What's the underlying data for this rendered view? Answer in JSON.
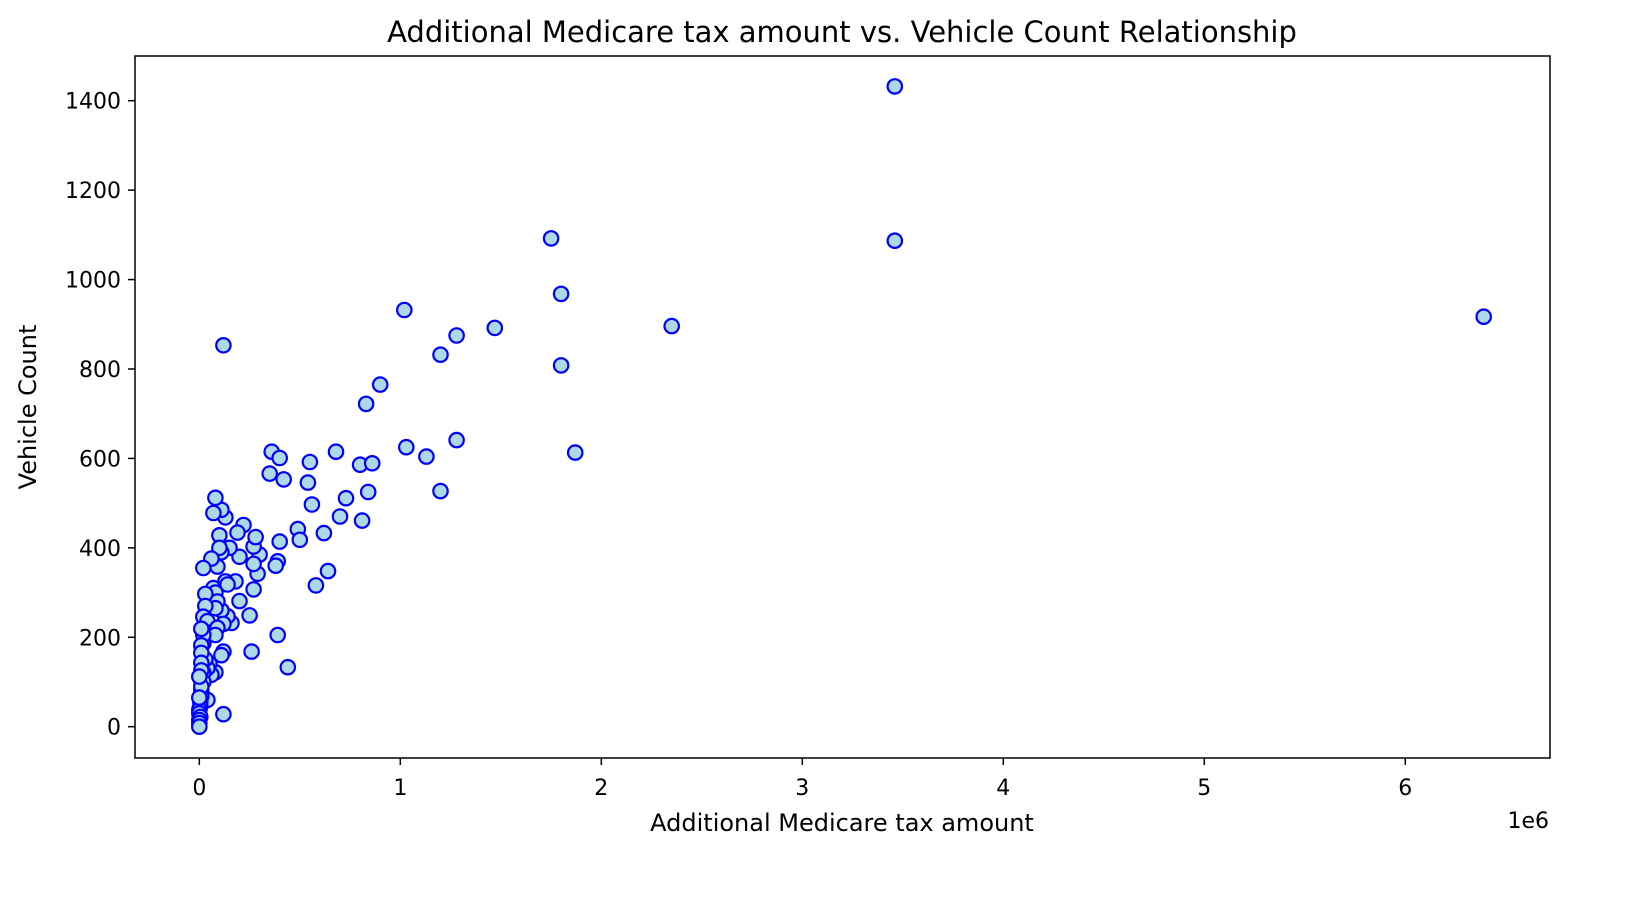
{
  "chart_data": {
    "type": "scatter",
    "title": "Additional Medicare tax amount vs. Vehicle Count Relationship",
    "xlabel": "Additional Medicare tax amount",
    "ylabel": "Vehicle Count",
    "x_offset_text": "1e6",
    "x_scale": 1000000,
    "xlim": [
      -320000,
      6720000
    ],
    "ylim": [
      -70,
      1500
    ],
    "xticks": [
      0,
      1000000,
      2000000,
      3000000,
      4000000,
      5000000,
      6000000
    ],
    "xtick_labels": [
      "0",
      "1",
      "2",
      "3",
      "4",
      "5",
      "6"
    ],
    "yticks": [
      0,
      200,
      400,
      600,
      800,
      1000,
      1200,
      1400
    ],
    "ytick_labels": [
      "0",
      "200",
      "400",
      "600",
      "800",
      "1000",
      "1200",
      "1400"
    ],
    "grid": false,
    "marker": {
      "face_color": "#add8e6",
      "edge_color": "#0000ff"
    },
    "points": [
      [
        3460000,
        1432
      ],
      [
        1750000,
        1092
      ],
      [
        3460000,
        1087
      ],
      [
        6390000,
        917
      ],
      [
        1800000,
        968
      ],
      [
        2350000,
        896
      ],
      [
        1020000,
        932
      ],
      [
        1470000,
        892
      ],
      [
        1280000,
        875
      ],
      [
        1200000,
        832
      ],
      [
        1800000,
        808
      ],
      [
        120000,
        853
      ],
      [
        900000,
        765
      ],
      [
        830000,
        722
      ],
      [
        1030000,
        625
      ],
      [
        1280000,
        641
      ],
      [
        1130000,
        604
      ],
      [
        1870000,
        613
      ],
      [
        680000,
        615
      ],
      [
        550000,
        592
      ],
      [
        800000,
        586
      ],
      [
        860000,
        589
      ],
      [
        360000,
        615
      ],
      [
        400000,
        601
      ],
      [
        350000,
        566
      ],
      [
        420000,
        553
      ],
      [
        540000,
        546
      ],
      [
        730000,
        511
      ],
      [
        840000,
        525
      ],
      [
        1200000,
        527
      ],
      [
        560000,
        497
      ],
      [
        700000,
        470
      ],
      [
        810000,
        461
      ],
      [
        490000,
        442
      ],
      [
        500000,
        418
      ],
      [
        620000,
        433
      ],
      [
        640000,
        348
      ],
      [
        580000,
        316
      ],
      [
        400000,
        414
      ],
      [
        390000,
        370
      ],
      [
        380000,
        360
      ],
      [
        390000,
        205
      ],
      [
        440000,
        133
      ],
      [
        260000,
        168
      ],
      [
        250000,
        249
      ],
      [
        270000,
        307
      ],
      [
        290000,
        342
      ],
      [
        300000,
        385
      ],
      [
        270000,
        403
      ],
      [
        280000,
        424
      ],
      [
        270000,
        364
      ],
      [
        220000,
        451
      ],
      [
        200000,
        380
      ],
      [
        190000,
        434
      ],
      [
        180000,
        325
      ],
      [
        200000,
        281
      ],
      [
        160000,
        232
      ],
      [
        140000,
        247
      ],
      [
        150000,
        400
      ],
      [
        130000,
        468
      ],
      [
        110000,
        485
      ],
      [
        80000,
        512
      ],
      [
        70000,
        478
      ],
      [
        100000,
        428
      ],
      [
        110000,
        390
      ],
      [
        90000,
        358
      ],
      [
        100000,
        400
      ],
      [
        60000,
        376
      ],
      [
        20000,
        355
      ],
      [
        70000,
        310
      ],
      [
        80000,
        300
      ],
      [
        130000,
        325
      ],
      [
        140000,
        318
      ],
      [
        110000,
        260
      ],
      [
        120000,
        230
      ],
      [
        90000,
        280
      ],
      [
        80000,
        265
      ],
      [
        30000,
        297
      ],
      [
        30000,
        270
      ],
      [
        20000,
        246
      ],
      [
        40000,
        236
      ],
      [
        60000,
        211
      ],
      [
        90000,
        221
      ],
      [
        80000,
        205
      ],
      [
        120000,
        168
      ],
      [
        110000,
        160
      ],
      [
        80000,
        122
      ],
      [
        60000,
        116
      ],
      [
        50000,
        141
      ],
      [
        40000,
        131
      ],
      [
        30000,
        151
      ],
      [
        20000,
        186
      ],
      [
        20000,
        205
      ],
      [
        10000,
        219
      ],
      [
        10000,
        182
      ],
      [
        10000,
        165
      ],
      [
        10000,
        143
      ],
      [
        20000,
        121
      ],
      [
        10000,
        103
      ],
      [
        20000,
        100
      ],
      [
        10000,
        82
      ],
      [
        40000,
        60
      ],
      [
        10000,
        68
      ],
      [
        5000,
        56
      ],
      [
        5000,
        45
      ],
      [
        0,
        38
      ],
      [
        0,
        30
      ],
      [
        5000,
        22
      ],
      [
        0,
        15
      ],
      [
        120000,
        28
      ],
      [
        0,
        8
      ],
      [
        0,
        0
      ],
      [
        10000,
        126
      ],
      [
        10000,
        90
      ],
      [
        0,
        112
      ],
      [
        0,
        65
      ]
    ]
  }
}
